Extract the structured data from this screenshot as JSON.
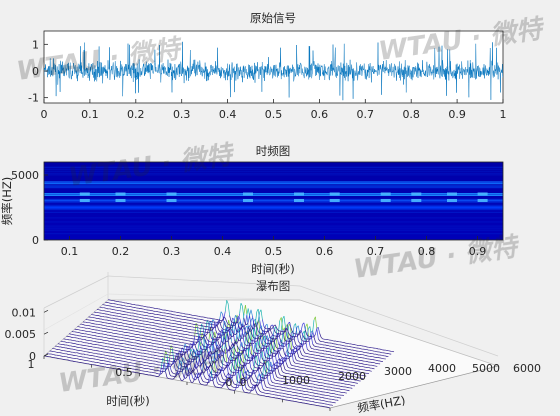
{
  "chart_data": [
    {
      "type": "line",
      "title": "原始信号",
      "xlabel": "",
      "ylabel": "",
      "xlim": [
        0,
        1
      ],
      "ylim": [
        -1.2,
        1.5
      ],
      "x_ticks": [
        "0",
        "0.1",
        "0.2",
        "0.3",
        "0.4",
        "0.5",
        "0.6",
        "0.7",
        "0.8",
        "0.9",
        "1"
      ],
      "y_ticks": [
        "-1",
        "0",
        "1"
      ],
      "series_color": "#0072bd",
      "description_of_data": "dense noisy signal mostly within ±0.6 with spikes up to about ±1.1"
    },
    {
      "type": "heatmap",
      "title": "时频图",
      "xlabel": "时间(秒)",
      "ylabel": "频率(HZ)",
      "xlim": [
        0.05,
        0.95
      ],
      "ylim": [
        0,
        6000
      ],
      "x_ticks": [
        "0.1",
        "0.2",
        "0.3",
        "0.4",
        "0.5",
        "0.6",
        "0.7",
        "0.8",
        "0.9"
      ],
      "y_ticks": [
        "0",
        "5000"
      ],
      "colormap": "jet",
      "bands_hz": [
        2500,
        3000,
        3500,
        4100,
        4400
      ]
    },
    {
      "type": "waterfall",
      "title": "瀑布图",
      "xlabel": "频率(HZ)",
      "ylabel": "时间(秒)",
      "x_ticks": [
        "0",
        "1000",
        "2000",
        "3000",
        "4000",
        "5000",
        "6000"
      ],
      "y_ticks": [
        "0",
        "0.5",
        "1"
      ],
      "z_ticks": [
        "0",
        "0.005",
        "0.01"
      ],
      "zlim": [
        0,
        0.011
      ]
    }
  ],
  "watermark": "WTAU · 微特"
}
